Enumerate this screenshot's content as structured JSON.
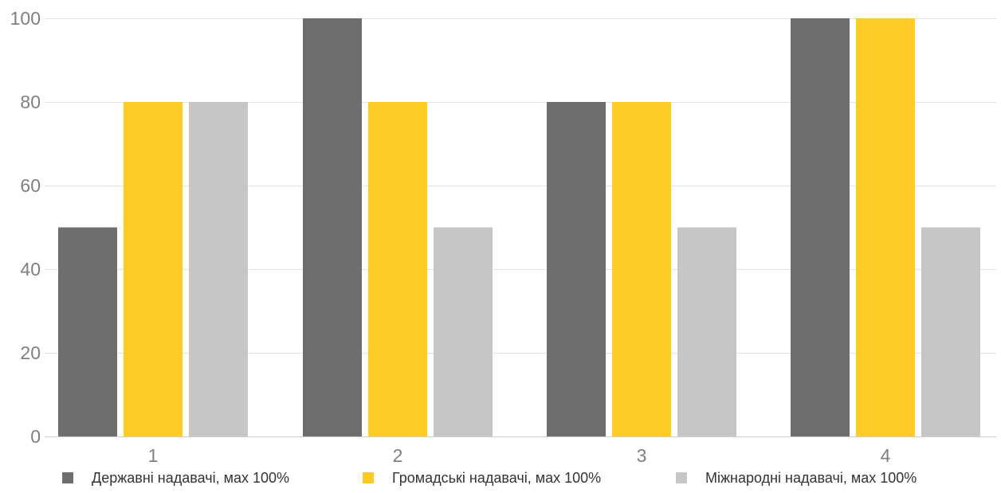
{
  "chart_data": {
    "type": "bar",
    "categories": [
      "1",
      "2",
      "3",
      "4"
    ],
    "series": [
      {
        "name": "Державні надавачі, мах 100%",
        "values": [
          50,
          100,
          80,
          100
        ],
        "color": "#6e6e6e"
      },
      {
        "name": "Громадські надавачі, мах 100%",
        "values": [
          80,
          80,
          80,
          100
        ],
        "color": "#fecc25"
      },
      {
        "name": "Міжнародні надавачі, мах 100%",
        "values": [
          80,
          50,
          50,
          50
        ],
        "color": "#c6c6c6"
      }
    ],
    "y_ticks": [
      "0",
      "20",
      "40",
      "60",
      "80",
      "100"
    ],
    "ylim": [
      0,
      100
    ],
    "grid": true,
    "legend_position": "bottom"
  }
}
